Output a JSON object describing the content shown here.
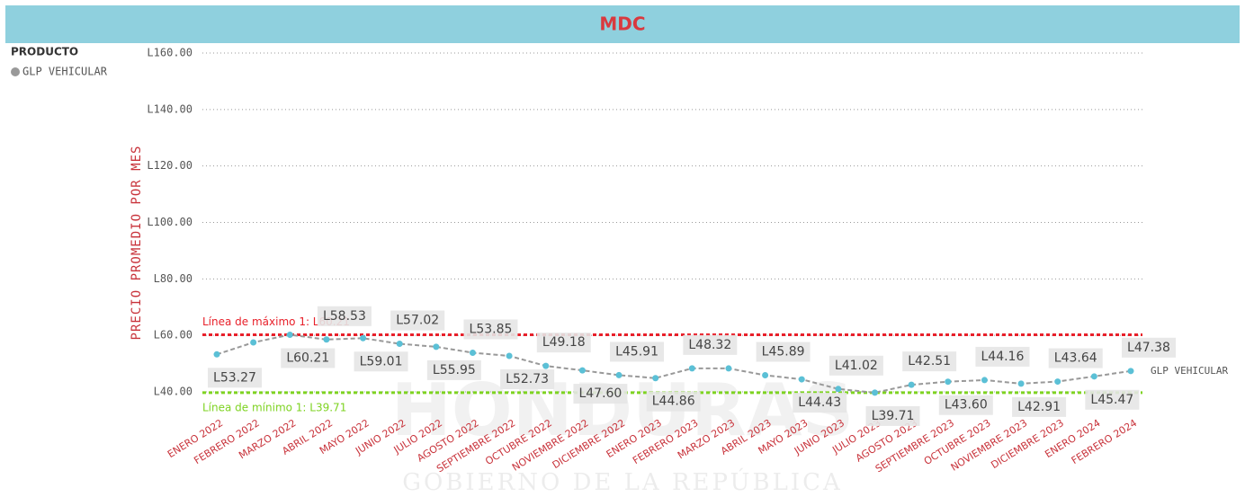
{
  "chart_data": {
    "type": "line",
    "title": "MDC",
    "legend_title": "PRODUCTO",
    "y_label": "PRECIO PROMEDIO POR MES",
    "watermark": [
      "HONDURAS",
      "GOBIERNO DE LA REPÚBLICA"
    ],
    "categories": [
      "ENERO 2022",
      "FEBRERO 2022",
      "MARZO 2022",
      "ABRIL 2022",
      "MAYO 2022",
      "JUNIO 2022",
      "JULIO 2022",
      "AGOSTO 2022",
      "SEPTIEMBRE 2022",
      "OCTUBRE 2022",
      "NOVIEMBRE 2022",
      "DICIEMBRE 2022",
      "ENERO 2023",
      "FEBRERO 2023",
      "MARZO 2023",
      "ABRIL 2023",
      "MAYO 2023",
      "JUNIO 2023",
      "JULIO 2023",
      "AGOSTO 2023",
      "SEPTIEMBRE 2023",
      "OCTUBRE 2023",
      "NOVIEMBRE 2023",
      "DICIEMBRE 2023",
      "ENERO 2024",
      "FEBRERO 2024"
    ],
    "series": [
      {
        "name": "GLP VEHICULAR",
        "color": "#5bc0d6",
        "values": [
          53.27,
          57.5,
          60.21,
          58.53,
          59.01,
          57.02,
          55.95,
          53.85,
          52.73,
          49.18,
          47.6,
          45.91,
          44.86,
          48.32,
          48.3,
          45.89,
          44.43,
          41.02,
          39.71,
          42.51,
          43.6,
          44.16,
          42.91,
          43.64,
          45.47,
          47.38
        ],
        "value_labels": [
          "L53.27",
          null,
          "L60.21",
          "L58.53",
          "L59.01",
          "L57.02",
          "L55.95",
          "L53.85",
          "L52.73",
          "L49.18",
          "L47.60",
          "L45.91",
          "L44.86",
          "L48.32",
          null,
          "L45.89",
          "L44.43",
          "L41.02",
          "L39.71",
          "L42.51",
          "L43.60",
          "L44.16",
          "L42.91",
          "L43.64",
          "L45.47",
          "L47.38"
        ]
      }
    ],
    "ylim": [
      40,
      160
    ],
    "yticks": [
      {
        "value": 40,
        "label": "L40.00"
      },
      {
        "value": 60,
        "label": "L60.00"
      },
      {
        "value": 80,
        "label": "L80.00"
      },
      {
        "value": 100,
        "label": "L100.00"
      },
      {
        "value": 120,
        "label": "L120.00"
      },
      {
        "value": 140,
        "label": "L140.00"
      },
      {
        "value": 160,
        "label": "L160.00"
      }
    ],
    "grid": true,
    "reference_lines": [
      {
        "value": 60.21,
        "label": "Línea de máximo 1: L60.21",
        "color": "#e8202a"
      },
      {
        "value": 39.71,
        "label": "Línea de mínimo 1: L39.71",
        "color": "#7ed321"
      }
    ]
  }
}
